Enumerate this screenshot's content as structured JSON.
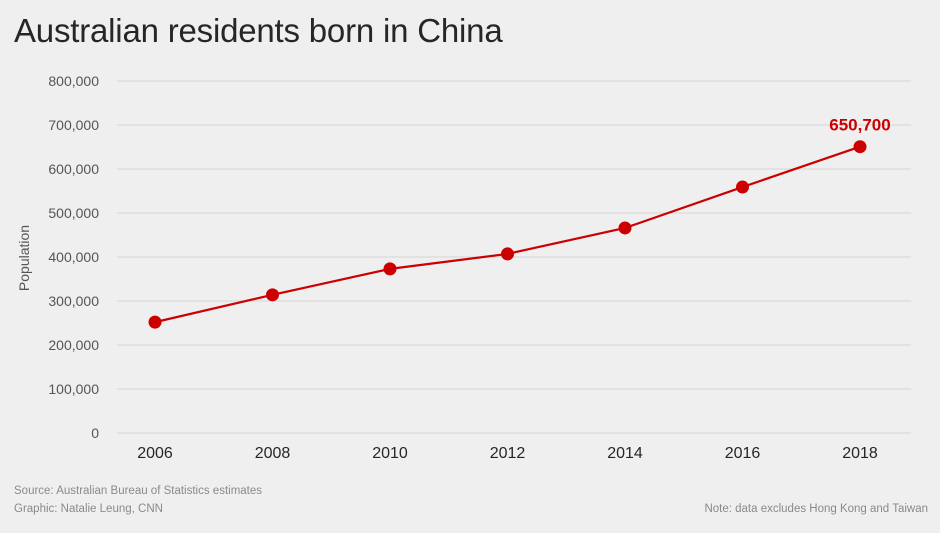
{
  "chart_data": {
    "type": "line",
    "title": "Australian residents born in China",
    "xlabel": "",
    "ylabel": "Population",
    "x": [
      2006,
      2008,
      2010,
      2012,
      2014,
      2016,
      2018
    ],
    "categories": [
      "2006",
      "2008",
      "2010",
      "2012",
      "2014",
      "2016",
      "2018"
    ],
    "series": [
      {
        "name": "Australian residents born in China",
        "values": [
          252000,
          314000,
          373000,
          407000,
          466000,
          559000,
          650700
        ],
        "color": "#cc0000"
      }
    ],
    "ylim": [
      0,
      800000
    ],
    "yticks": [
      0,
      100000,
      200000,
      300000,
      400000,
      500000,
      600000,
      700000,
      800000
    ],
    "ytick_labels": [
      "0",
      "100,000",
      "200,000",
      "300,000",
      "400,000",
      "500,000",
      "600,000",
      "700,000",
      "800,000"
    ],
    "grid": true,
    "annotations": [
      {
        "x": 2018,
        "text": "650,700"
      }
    ],
    "source": "Source: Australian Bureau of Statistics estimates",
    "credit": "Graphic: Natalie Leung, CNN",
    "note": "Note: data excludes Hong Kong and Taiwan"
  }
}
